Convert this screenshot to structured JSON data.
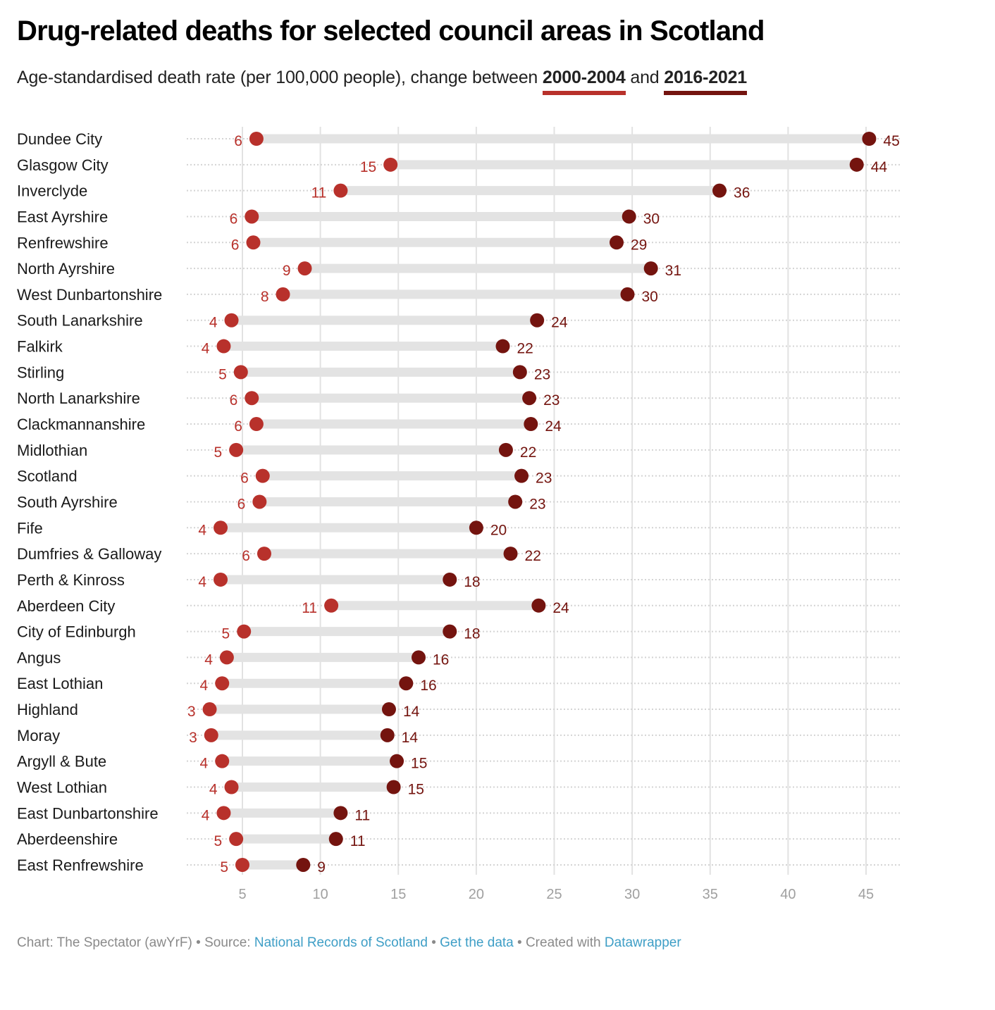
{
  "header": {
    "title": "Drug-related deaths for selected council areas in Scotland",
    "subtitle_prefix": "Age-standardised death rate (per 100,000 people), change between ",
    "subtitle_key1": "2000-2004",
    "subtitle_mid": " and ",
    "subtitle_key2": "2016-2021"
  },
  "colors": {
    "period1": "#b8312b",
    "period2": "#74140f",
    "bar": "#e3e3e3",
    "grid": "#e2e2e2",
    "dots": "#d4d4d4"
  },
  "chart_data": {
    "type": "dot-range",
    "title": "Drug-related deaths for selected council areas in Scotland",
    "subtitle": "Age-standardised death rate (per 100,000 people), change between 2000-2004 and 2016-2021",
    "xlabel": "",
    "ylabel": "",
    "xlim": [
      1.4,
      47.2
    ],
    "xticks": [
      5,
      10,
      15,
      20,
      25,
      30,
      35,
      40,
      45
    ],
    "grid": true,
    "legend": "inline-subtitle",
    "series": [
      {
        "name": "2000-2004",
        "color": "#b8312b"
      },
      {
        "name": "2016-2021",
        "color": "#74140f"
      }
    ],
    "categories": [
      "Dundee City",
      "Glasgow City",
      "Inverclyde",
      "East Ayrshire",
      "Renfrewshire",
      "North Ayrshire",
      "West Dunbartonshire",
      "South Lanarkshire",
      "Falkirk",
      "Stirling",
      "North Lanarkshire",
      "Clackmannanshire",
      "Midlothian",
      "Scotland",
      "South Ayrshire",
      "Fife",
      "Dumfries & Galloway",
      "Perth & Kinross",
      "Aberdeen City",
      "City of Edinburgh",
      "Angus",
      "East Lothian",
      "Highland",
      "Moray",
      "Argyll & Bute",
      "West Lothian",
      "East Dunbartonshire",
      "Aberdeenshire",
      "East Renfrewshire"
    ],
    "rows": [
      {
        "name": "Dundee City",
        "v1": 5.9,
        "v2": 45.2,
        "l1": "6",
        "l2": "45"
      },
      {
        "name": "Glasgow City",
        "v1": 14.5,
        "v2": 44.4,
        "l1": "15",
        "l2": "44"
      },
      {
        "name": "Inverclyde",
        "v1": 11.3,
        "v2": 35.6,
        "l1": "11",
        "l2": "36"
      },
      {
        "name": "East Ayrshire",
        "v1": 5.6,
        "v2": 29.8,
        "l1": "6",
        "l2": "30"
      },
      {
        "name": "Renfrewshire",
        "v1": 5.7,
        "v2": 29.0,
        "l1": "6",
        "l2": "29"
      },
      {
        "name": "North Ayrshire",
        "v1": 9.0,
        "v2": 31.2,
        "l1": "9",
        "l2": "31"
      },
      {
        "name": "West Dunbartonshire",
        "v1": 7.6,
        "v2": 29.7,
        "l1": "8",
        "l2": "30"
      },
      {
        "name": "South Lanarkshire",
        "v1": 4.3,
        "v2": 23.9,
        "l1": "4",
        "l2": "24"
      },
      {
        "name": "Falkirk",
        "v1": 3.8,
        "v2": 21.7,
        "l1": "4",
        "l2": "22"
      },
      {
        "name": "Stirling",
        "v1": 4.9,
        "v2": 22.8,
        "l1": "5",
        "l2": "23"
      },
      {
        "name": "North Lanarkshire",
        "v1": 5.6,
        "v2": 23.4,
        "l1": "6",
        "l2": "23"
      },
      {
        "name": "Clackmannanshire",
        "v1": 5.9,
        "v2": 23.5,
        "l1": "6",
        "l2": "24"
      },
      {
        "name": "Midlothian",
        "v1": 4.6,
        "v2": 21.9,
        "l1": "5",
        "l2": "22"
      },
      {
        "name": "Scotland",
        "v1": 6.3,
        "v2": 22.9,
        "l1": "6",
        "l2": "23"
      },
      {
        "name": "South Ayrshire",
        "v1": 6.1,
        "v2": 22.5,
        "l1": "6",
        "l2": "23"
      },
      {
        "name": "Fife",
        "v1": 3.6,
        "v2": 20.0,
        "l1": "4",
        "l2": "20"
      },
      {
        "name": "Dumfries & Galloway",
        "v1": 6.4,
        "v2": 22.2,
        "l1": "6",
        "l2": "22"
      },
      {
        "name": "Perth & Kinross",
        "v1": 3.6,
        "v2": 18.3,
        "l1": "4",
        "l2": "18"
      },
      {
        "name": "Aberdeen City",
        "v1": 10.7,
        "v2": 24.0,
        "l1": "11",
        "l2": "24"
      },
      {
        "name": "City of Edinburgh",
        "v1": 5.1,
        "v2": 18.3,
        "l1": "5",
        "l2": "18"
      },
      {
        "name": "Angus",
        "v1": 4.0,
        "v2": 16.3,
        "l1": "4",
        "l2": "16"
      },
      {
        "name": "East Lothian",
        "v1": 3.7,
        "v2": 15.5,
        "l1": "4",
        "l2": "16"
      },
      {
        "name": "Highland",
        "v1": 2.9,
        "v2": 14.4,
        "l1": "3",
        "l2": "14"
      },
      {
        "name": "Moray",
        "v1": 3.0,
        "v2": 14.3,
        "l1": "3",
        "l2": "14"
      },
      {
        "name": "Argyll & Bute",
        "v1": 3.7,
        "v2": 14.9,
        "l1": "4",
        "l2": "15"
      },
      {
        "name": "West Lothian",
        "v1": 4.3,
        "v2": 14.7,
        "l1": "4",
        "l2": "15"
      },
      {
        "name": "East Dunbartonshire",
        "v1": 3.8,
        "v2": 11.3,
        "l1": "4",
        "l2": "11"
      },
      {
        "name": "Aberdeenshire",
        "v1": 4.6,
        "v2": 11.0,
        "l1": "5",
        "l2": "11"
      },
      {
        "name": "East Renfrewshire",
        "v1": 5.0,
        "v2": 8.9,
        "l1": "5",
        "l2": "9"
      }
    ]
  },
  "footer": {
    "chart_credit": "Chart: The Spectator (awYrF)",
    "sep": " • ",
    "source_prefix": "Source: ",
    "source_link": "National Records of Scotland",
    "get_data": "Get the data",
    "created_prefix": "Created with ",
    "created_link": "Datawrapper"
  }
}
